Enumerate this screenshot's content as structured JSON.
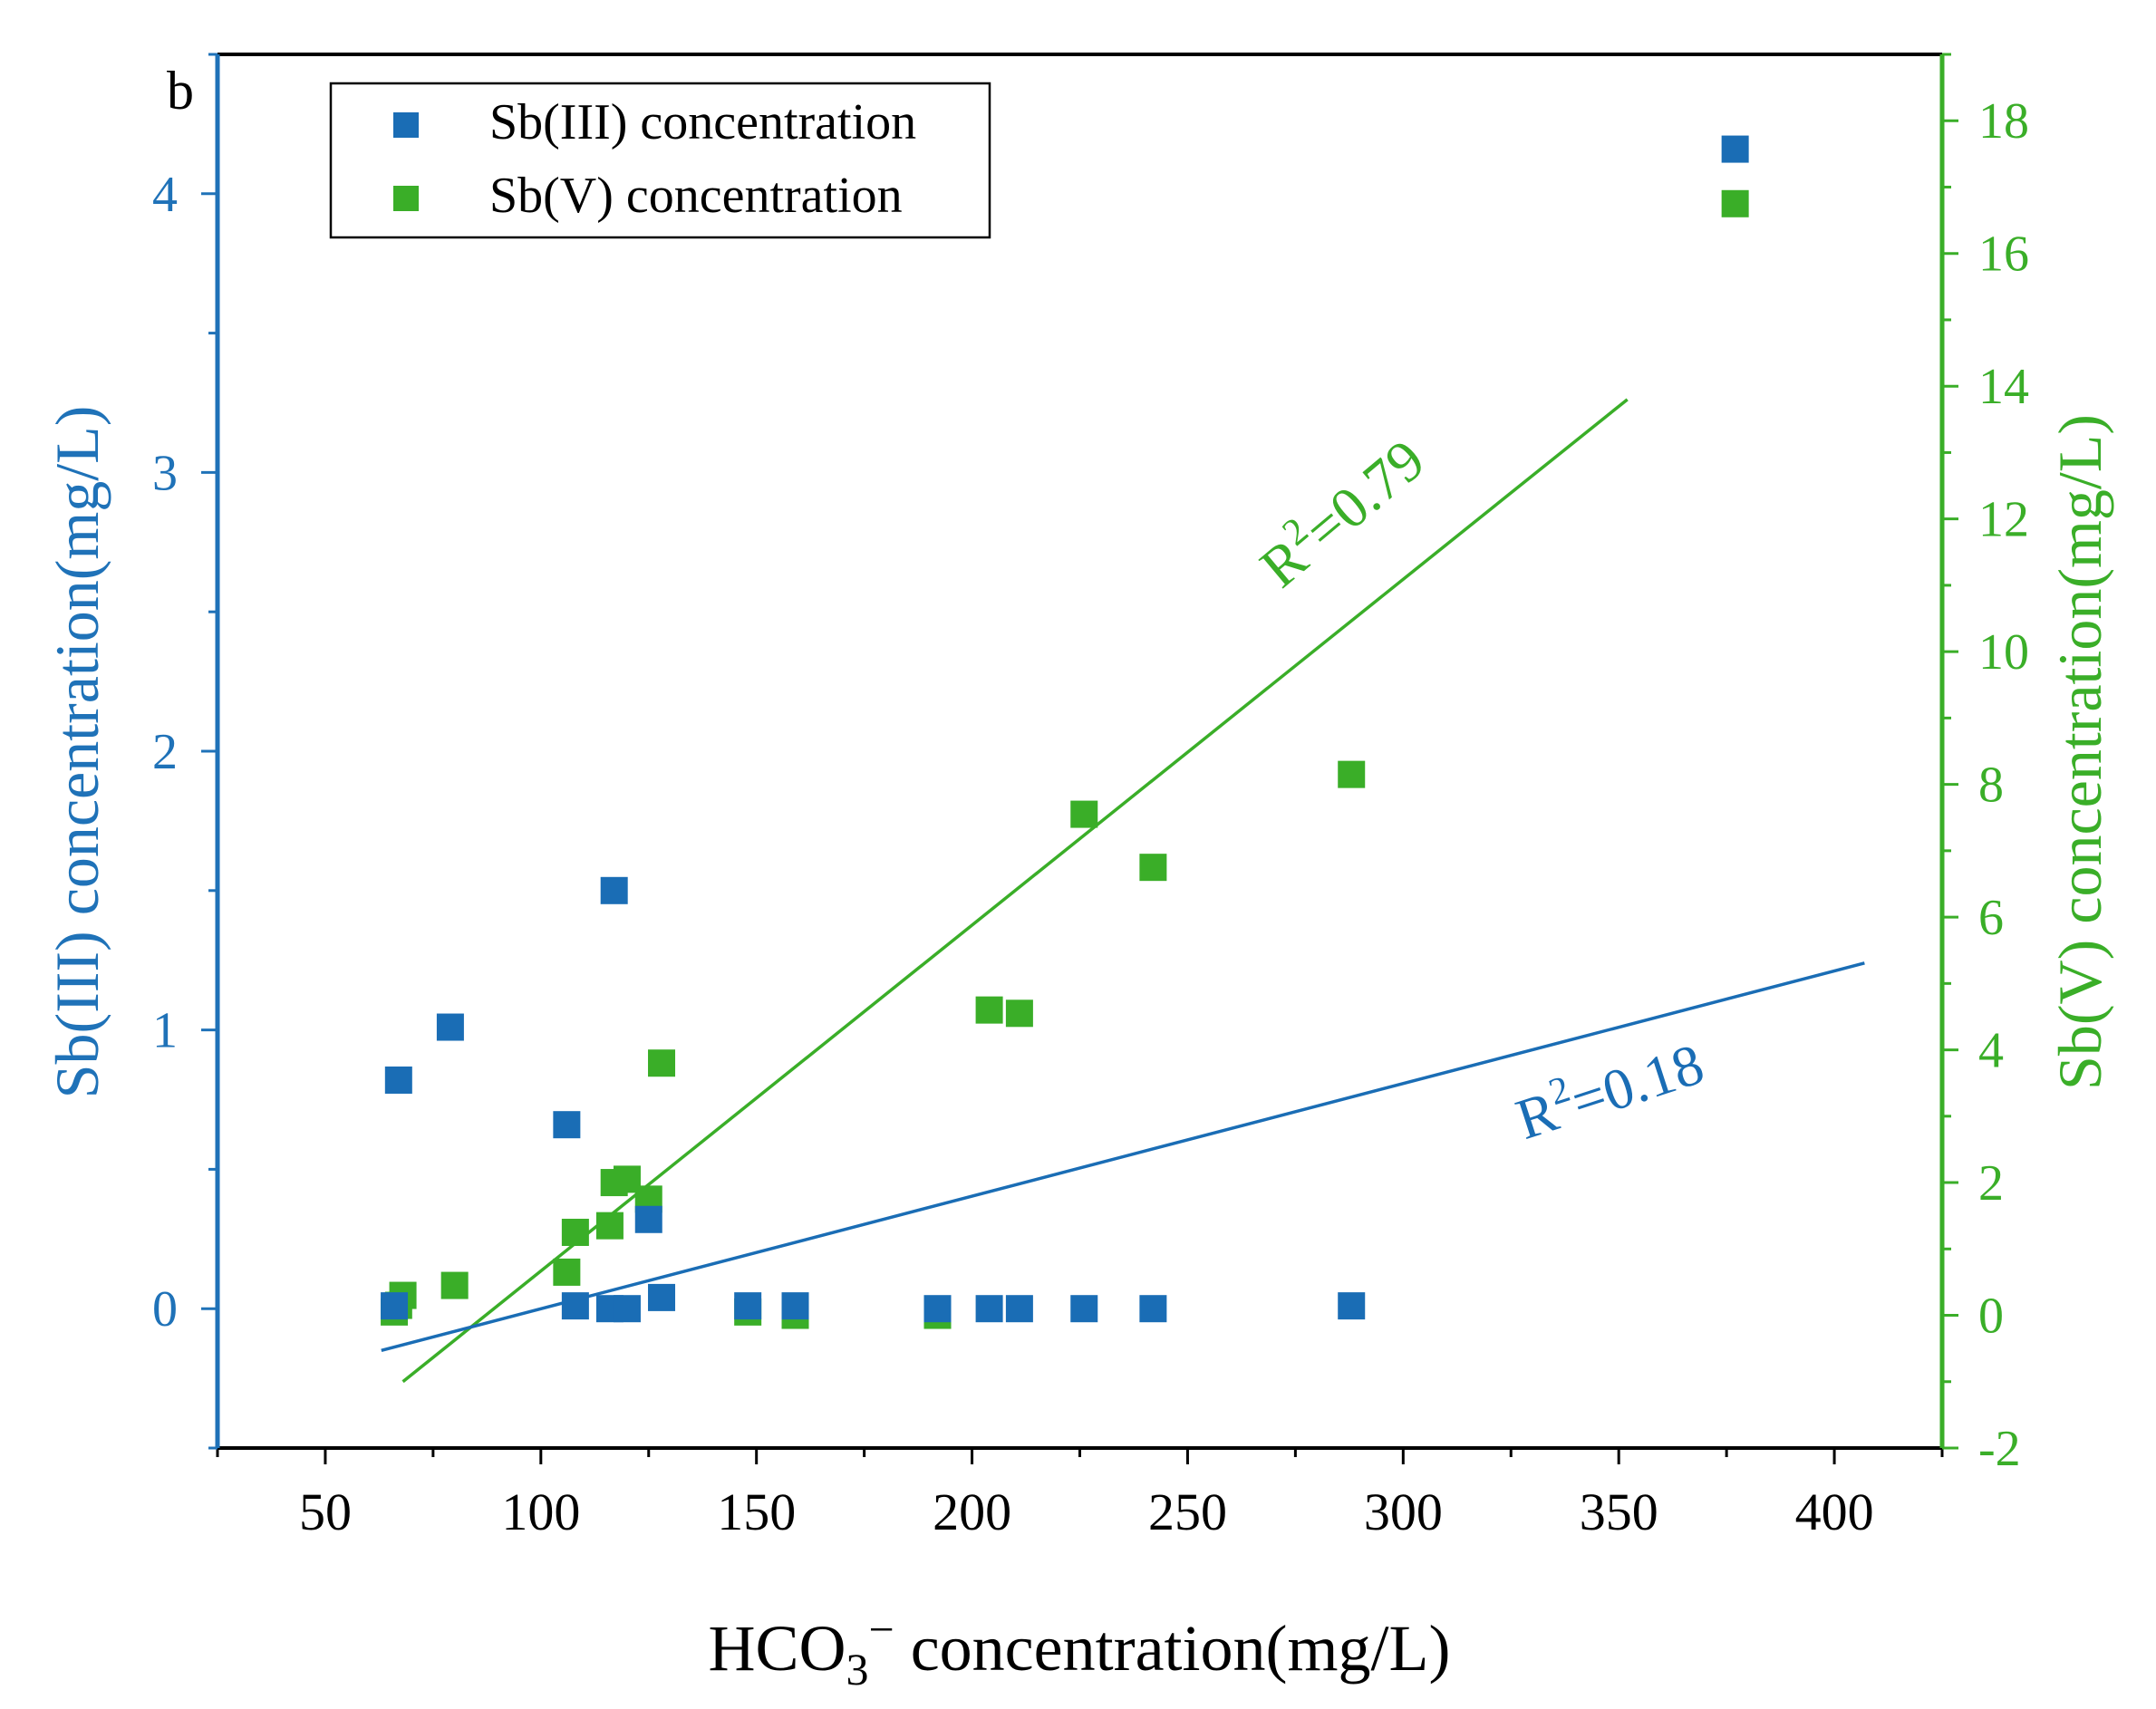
{
  "panel_label": "b",
  "colors": {
    "sb3": "#1a6db5",
    "sb5": "#3aae28",
    "sb3_axis": "#1f72b8",
    "sb5_axis": "#3aae28",
    "frame": "#000000"
  },
  "chart_data": {
    "type": "scatter",
    "xlabel_main": "HCO",
    "xlabel_sub": "3",
    "xlabel_sup": "−",
    "xlabel_rest": " concentration(mg/L)",
    "ylabel_left": "Sb(III) concentration(mg/L)",
    "ylabel_right": "Sb(V) concentration(mg/L)",
    "xlim": [
      25,
      425
    ],
    "ylim_left": [
      -0.5,
      4.5
    ],
    "ylim_right": [
      -2,
      19
    ],
    "x_ticks": [
      50,
      100,
      150,
      200,
      250,
      300,
      350,
      400
    ],
    "x_tick_labels": [
      "50",
      "100",
      "150",
      "200",
      "250",
      "300",
      "350",
      "400"
    ],
    "y_left_ticks": [
      0,
      1,
      2,
      3,
      4
    ],
    "y_left_tick_labels": [
      "0",
      "1",
      "2",
      "3",
      "4"
    ],
    "y_right_ticks": [
      -2,
      0,
      2,
      4,
      6,
      8,
      10,
      12,
      14,
      16,
      18
    ],
    "y_right_tick_labels": [
      "-2",
      "0",
      "2",
      "4",
      "6",
      "8",
      "10",
      "12",
      "14",
      "16",
      "18"
    ],
    "legend": {
      "position": "top-left",
      "entries": [
        "Sb(III) concentration",
        "Sb(V) concentration"
      ]
    },
    "series": [
      {
        "name": "Sb(III) concentration",
        "axis": "left",
        "points": [
          {
            "x": 66,
            "y": 0.01
          },
          {
            "x": 67,
            "y": 0.82
          },
          {
            "x": 79,
            "y": 1.01
          },
          {
            "x": 106,
            "y": 0.66
          },
          {
            "x": 108,
            "y": 0.01
          },
          {
            "x": 116,
            "y": 0.0
          },
          {
            "x": 117,
            "y": 1.5
          },
          {
            "x": 120,
            "y": 0.0
          },
          {
            "x": 125,
            "y": 0.32
          },
          {
            "x": 128,
            "y": 0.04
          },
          {
            "x": 148,
            "y": 0.01
          },
          {
            "x": 159,
            "y": 0.01
          },
          {
            "x": 192,
            "y": 0.0
          },
          {
            "x": 204,
            "y": 0.0
          },
          {
            "x": 211,
            "y": 0.0
          },
          {
            "x": 226,
            "y": 0.0
          },
          {
            "x": 242,
            "y": 0.0
          },
          {
            "x": 288,
            "y": 0.01
          },
          {
            "x": 377,
            "y": 4.16
          }
        ],
        "fit": {
          "x": [
            63,
            407
          ],
          "y": [
            -0.15,
            1.24
          ]
        },
        "annotation_prefix": "R",
        "annotation_sup": "2",
        "annotation_suffix": "=0.18"
      },
      {
        "name": "Sb(V) concentration",
        "axis": "right",
        "points": [
          {
            "x": 66,
            "y": 0.05
          },
          {
            "x": 67,
            "y": 0.15
          },
          {
            "x": 68,
            "y": 0.3
          },
          {
            "x": 80,
            "y": 0.45
          },
          {
            "x": 106,
            "y": 0.65
          },
          {
            "x": 108,
            "y": 1.25
          },
          {
            "x": 116,
            "y": 1.35
          },
          {
            "x": 117,
            "y": 2.0
          },
          {
            "x": 120,
            "y": 2.05
          },
          {
            "x": 125,
            "y": 1.75
          },
          {
            "x": 128,
            "y": 3.8
          },
          {
            "x": 148,
            "y": 0.05
          },
          {
            "x": 159,
            "y": 0.0
          },
          {
            "x": 192,
            "y": 0.0
          },
          {
            "x": 204,
            "y": 4.6
          },
          {
            "x": 211,
            "y": 4.55
          },
          {
            "x": 226,
            "y": 7.55
          },
          {
            "x": 242,
            "y": 6.75
          },
          {
            "x": 288,
            "y": 8.15
          },
          {
            "x": 377,
            "y": 16.75
          }
        ],
        "fit": {
          "x": [
            68,
            352
          ],
          "y": [
            -1.0,
            13.8
          ]
        },
        "annotation_prefix": "R",
        "annotation_sup": "2",
        "annotation_suffix": "=0.79"
      }
    ]
  }
}
